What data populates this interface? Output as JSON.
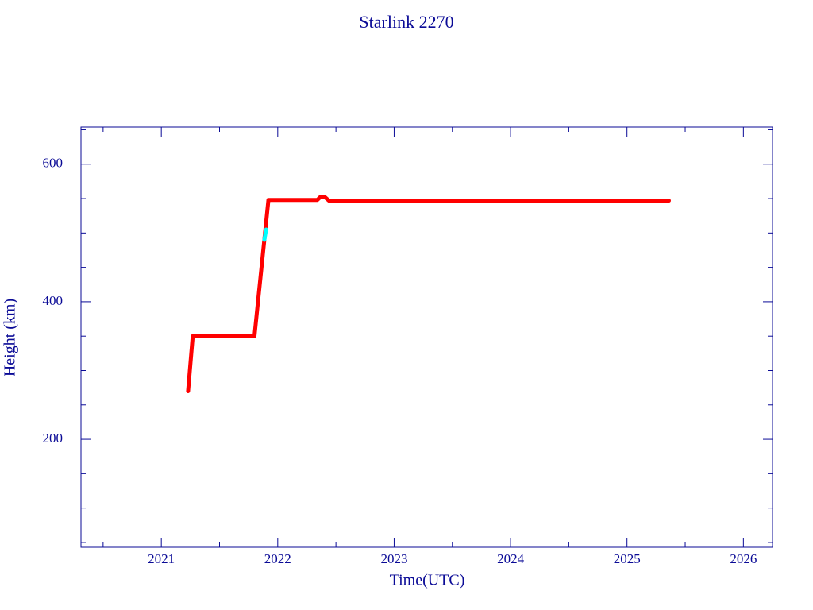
{
  "chart_data": {
    "type": "line",
    "title": "Starlink 2270",
    "x_label": "Time(UTC)",
    "y_label": "Height (km)",
    "series": [
      {
        "color": "#ff0000",
        "x": [
          2021.23,
          2021.27,
          2021.8,
          2021.92,
          2022.34,
          2022.37,
          2022.4,
          2022.44,
          2025.36
        ],
        "values": [
          270,
          350,
          350,
          548,
          548,
          553,
          553,
          547,
          547
        ]
      },
      {
        "color": "#00ffff",
        "x": [
          2021.885,
          2021.9
        ],
        "values": [
          490,
          505
        ]
      }
    ],
    "xlim": [
      2020.31,
      2026.25
    ],
    "ylim": [
      43,
      654
    ],
    "xticks": [
      2021,
      2022,
      2023,
      2024,
      2025,
      2026
    ],
    "yticks": [
      200,
      400,
      600
    ],
    "xminorticks": [
      2020.5,
      2021.5,
      2022.5,
      2023.5,
      2024.5,
      2025.5
    ],
    "yminorticks": [
      50,
      100,
      150,
      250,
      300,
      350,
      450,
      500,
      550,
      650
    ]
  }
}
